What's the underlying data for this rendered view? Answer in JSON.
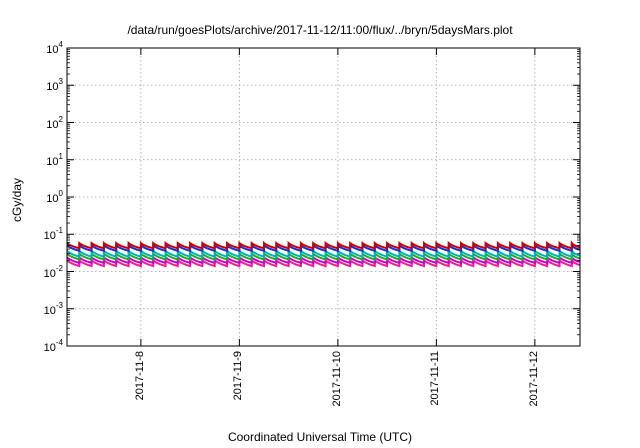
{
  "chart_data": {
    "type": "line",
    "title": "/data/run/goesPlots/archive/2017-11-12/11:00/flux/../bryn/5daysMars.plot",
    "xlabel": "Coordinated Universal Time (UTC)",
    "ylabel": "cGy/day",
    "yscale": "log",
    "ylim": [
      0.0001,
      10000
    ],
    "xlim": [
      "2017-11-07T06:00",
      "2017-11-12T11:00"
    ],
    "grid": true,
    "legend": "none",
    "y_ticks": [
      {
        "base": "10",
        "exp": "4"
      },
      {
        "base": "10",
        "exp": "3"
      },
      {
        "base": "10",
        "exp": "2"
      },
      {
        "base": "10",
        "exp": "1"
      },
      {
        "base": "10",
        "exp": "0"
      },
      {
        "base": "10",
        "exp": "-1"
      },
      {
        "base": "10",
        "exp": "-2"
      },
      {
        "base": "10",
        "exp": "-3"
      },
      {
        "base": "10",
        "exp": "-4"
      }
    ],
    "x_ticks": [
      "2017-11-8",
      "2017-11-9",
      "2017-11-10",
      "2017-11-11",
      "2017-11-12"
    ],
    "x_tick_dates": [
      "2017-11-08T00:00",
      "2017-11-09T00:00",
      "2017-11-10T00:00",
      "2017-11-11T00:00",
      "2017-11-12T00:00"
    ],
    "sawtooth_period_hours": 3,
    "series": [
      {
        "color": "#cc0000",
        "peak": 0.058,
        "trough": 0.042
      },
      {
        "color": "#1a2fd6",
        "peak": 0.05,
        "trough": 0.036
      },
      {
        "color": "#00b3b3",
        "peak": 0.036,
        "trough": 0.025
      },
      {
        "color": "#22aa22",
        "peak": 0.03,
        "trough": 0.021
      },
      {
        "color": "#cc00cc",
        "peak": 0.024,
        "trough": 0.017
      },
      {
        "color": "#ff1493",
        "peak": 0.02,
        "trough": 0.014
      }
    ]
  }
}
